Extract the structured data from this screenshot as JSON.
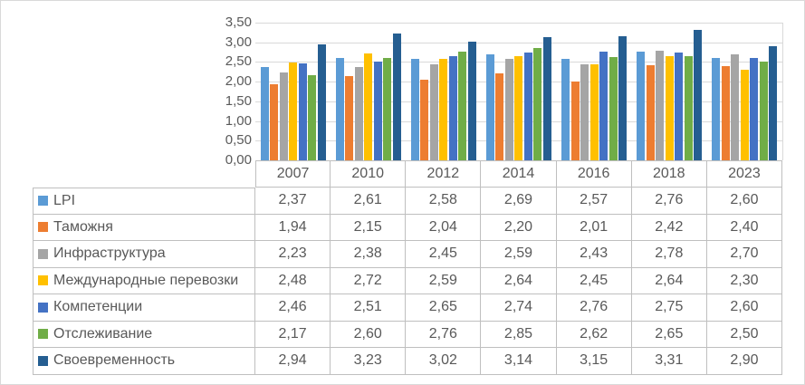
{
  "chart_data": {
    "type": "bar",
    "title": "",
    "categories": [
      "2007",
      "2010",
      "2012",
      "2014",
      "2016",
      "2018",
      "2023"
    ],
    "series": [
      {
        "name": "LPI",
        "color": "#5B9BD5",
        "values": [
          2.37,
          2.61,
          2.58,
          2.69,
          2.57,
          2.76,
          2.6
        ]
      },
      {
        "name": "Таможня",
        "color": "#ED7D31",
        "values": [
          1.94,
          2.15,
          2.04,
          2.2,
          2.01,
          2.42,
          2.4
        ]
      },
      {
        "name": "Инфраструктура",
        "color": "#A5A5A5",
        "values": [
          2.23,
          2.38,
          2.45,
          2.59,
          2.43,
          2.78,
          2.7
        ]
      },
      {
        "name": "Международные перевозки",
        "color": "#FFC000",
        "values": [
          2.48,
          2.72,
          2.59,
          2.64,
          2.45,
          2.64,
          2.3
        ]
      },
      {
        "name": "Компетенции",
        "color": "#4472C4",
        "values": [
          2.46,
          2.51,
          2.65,
          2.74,
          2.76,
          2.75,
          2.6
        ]
      },
      {
        "name": "Отслеживание",
        "color": "#70AD47",
        "values": [
          2.17,
          2.6,
          2.76,
          2.85,
          2.62,
          2.65,
          2.5
        ]
      },
      {
        "name": "Своевременность",
        "color": "#255E91",
        "values": [
          2.94,
          3.23,
          3.02,
          3.14,
          3.15,
          3.31,
          2.9
        ]
      }
    ],
    "y_axis": {
      "min": 0,
      "max": 3.5,
      "step": 0.5,
      "ticks": [
        {
          "value": 0.0,
          "label": "0,00"
        },
        {
          "value": 0.5,
          "label": "0,50"
        },
        {
          "value": 1.0,
          "label": "1,00"
        },
        {
          "value": 1.5,
          "label": "1,50"
        },
        {
          "value": 2.0,
          "label": "2,00"
        },
        {
          "value": 2.5,
          "label": "2,50"
        },
        {
          "value": 3.0,
          "label": "3,00"
        },
        {
          "value": 3.5,
          "label": "3,50"
        }
      ]
    },
    "grid": true,
    "legend_position": "data-table-left-column",
    "decimal_separator": ",",
    "value_decimals": 2
  },
  "colors": {
    "text": "#595959",
    "table_border": "#BFBFBF",
    "gridline": "#D9D9D9",
    "frame": "#D9D9D9",
    "background": "#FFFFFF"
  }
}
